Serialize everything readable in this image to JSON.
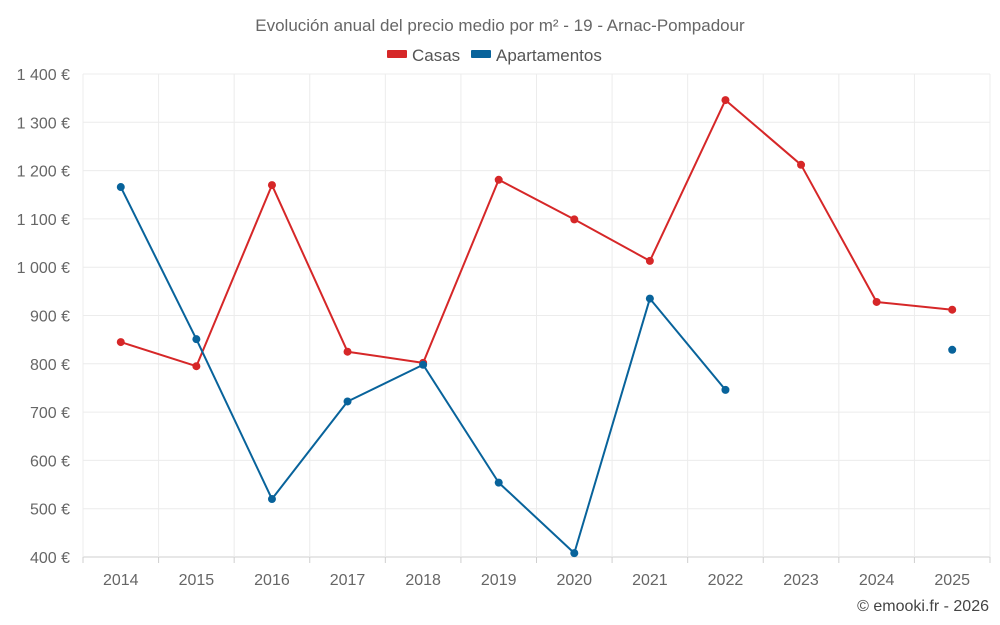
{
  "chart_data": {
    "type": "line",
    "title": "Evolución anual del precio medio por m² - 19 - Arnac-Pompadour",
    "categories": [
      "2014",
      "2015",
      "2016",
      "2017",
      "2018",
      "2019",
      "2020",
      "2021",
      "2022",
      "2023",
      "2024",
      "2025"
    ],
    "ylim": [
      400,
      1400
    ],
    "yticks": [
      400,
      500,
      600,
      700,
      800,
      900,
      1000,
      1100,
      1200,
      1300,
      1400
    ],
    "ytick_labels": [
      "400 €",
      "500 €",
      "600 €",
      "700 €",
      "800 €",
      "900 €",
      "1 000 €",
      "1 100 €",
      "1 200 €",
      "1 300 €",
      "1 400 €"
    ],
    "grid": true,
    "legend_position": "top-center",
    "series": [
      {
        "name": "Casas",
        "color": "#d62728",
        "values": [
          845,
          795,
          1170,
          825,
          802,
          1181,
          1099,
          1013,
          1346,
          1212,
          928,
          912
        ]
      },
      {
        "name": "Apartamentos",
        "color": "#08639b",
        "values": [
          1166,
          851,
          520,
          722,
          798,
          554,
          408,
          935,
          746,
          null,
          null,
          829
        ]
      }
    ]
  },
  "credit": "© emooki.fr - 2026"
}
